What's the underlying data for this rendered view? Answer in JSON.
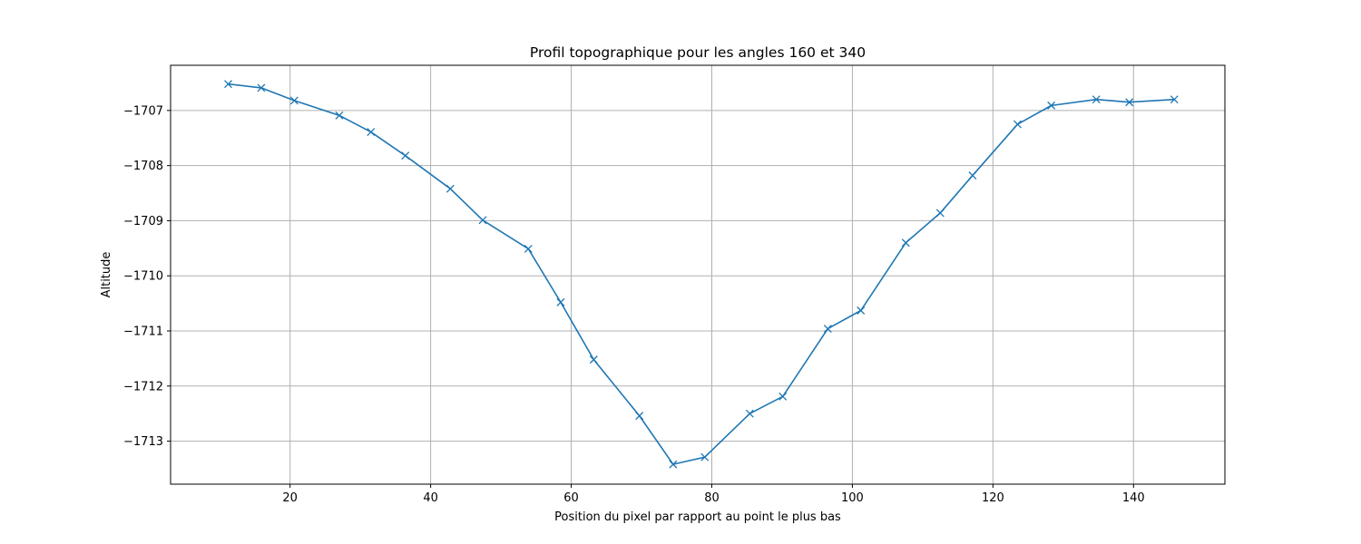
{
  "chart_data": {
    "type": "line",
    "title": "Profil topographique pour les angles 160 et 340",
    "xlabel": "Position du pixel par rapport au point le plus bas",
    "ylabel": "Altitude",
    "xlim": [
      3,
      153
    ],
    "ylim": [
      -1713.78,
      -1706.18
    ],
    "xticks": [
      20,
      40,
      60,
      80,
      100,
      120,
      140
    ],
    "yticks": [
      -1707,
      -1708,
      -1709,
      -1710,
      -1711,
      -1712,
      -1713
    ],
    "grid": true,
    "line_color": "#1f77b4",
    "marker": "x",
    "series": [
      {
        "x": [
          11.2,
          15.9,
          20.6,
          27.0,
          31.5,
          36.4,
          42.8,
          47.4,
          53.9,
          58.5,
          63.2,
          69.7,
          74.5,
          79.0,
          85.4,
          90.1,
          96.5,
          101.2,
          107.6,
          112.5,
          117.1,
          123.5,
          128.3,
          134.7,
          139.4,
          145.8
        ],
        "y": [
          -1706.52,
          -1706.59,
          -1706.82,
          -1707.09,
          -1707.39,
          -1707.82,
          -1708.42,
          -1708.99,
          -1709.51,
          -1710.48,
          -1711.52,
          -1712.54,
          -1713.42,
          -1713.29,
          -1712.5,
          -1712.19,
          -1710.96,
          -1710.63,
          -1709.4,
          -1708.86,
          -1708.18,
          -1707.25,
          -1706.91,
          -1706.8,
          -1706.85,
          -1706.8
        ]
      }
    ]
  }
}
